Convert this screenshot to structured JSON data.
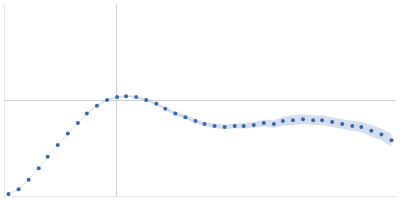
{
  "chart_data": {
    "type": "scatter",
    "color": "#3a67b0",
    "marker": "circle",
    "grid": true,
    "tick_labels": false,
    "x": [
      0.04,
      0.13,
      0.22,
      0.31,
      0.39,
      0.48,
      0.57,
      0.66,
      0.74,
      0.83,
      0.92,
      1.01,
      1.09,
      1.18,
      1.27,
      1.36,
      1.44,
      1.53,
      1.62,
      1.71,
      1.79,
      1.88,
      1.97,
      2.06,
      2.14,
      2.23,
      2.32,
      2.41,
      2.49,
      2.58,
      2.67,
      2.76,
      2.84,
      2.93,
      3.02,
      3.11,
      3.19,
      3.28,
      3.37,
      3.46
    ],
    "values": [
      0.02,
      0.07,
      0.17,
      0.29,
      0.41,
      0.53,
      0.65,
      0.76,
      0.86,
      0.94,
      1.0,
      1.03,
      1.04,
      1.03,
      1.0,
      0.96,
      0.91,
      0.86,
      0.82,
      0.78,
      0.75,
      0.73,
      0.72,
      0.73,
      0.73,
      0.74,
      0.76,
      0.75,
      0.78,
      0.79,
      0.8,
      0.79,
      0.79,
      0.77,
      0.75,
      0.73,
      0.72,
      0.68,
      0.64,
      0.58
    ],
    "errors": [
      0.005,
      0.005,
      0.005,
      0.005,
      0.005,
      0.005,
      0.005,
      0.005,
      0.008,
      0.008,
      0.01,
      0.01,
      0.01,
      0.012,
      0.012,
      0.015,
      0.015,
      0.018,
      0.02,
      0.02,
      0.02,
      0.022,
      0.025,
      0.025,
      0.028,
      0.03,
      0.035,
      0.04,
      0.045,
      0.05,
      0.05,
      0.05,
      0.05,
      0.05,
      0.05,
      0.05,
      0.055,
      0.06,
      0.06,
      0.065
    ],
    "xlim": [
      0,
      3.5
    ],
    "xticks": [
      1
    ],
    "ylim": [
      0,
      2
    ],
    "yticks": [
      1
    ]
  }
}
